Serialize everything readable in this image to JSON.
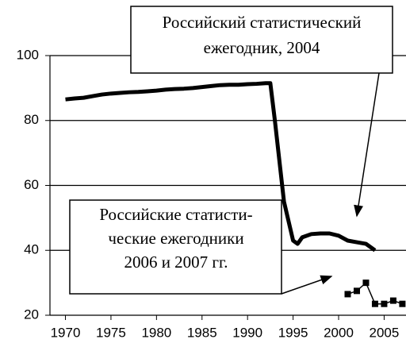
{
  "chart_data": {
    "type": "line",
    "series": [
      {
        "color": "#000000",
        "width": 5,
        "markers": false,
        "x": [
          1970,
          1971,
          1972,
          1973,
          1974,
          1975,
          1976,
          1977,
          1978,
          1979,
          1980,
          1981,
          1982,
          1983,
          1984,
          1985,
          1986,
          1987,
          1988,
          1989,
          1990,
          1991,
          1992,
          1992.5,
          1993,
          1994,
          1995,
          1995.5,
          1996,
          1997,
          1998,
          1999,
          2000,
          2001,
          2002,
          2003,
          2004
        ],
        "values": [
          86.5,
          86.8,
          87,
          87.5,
          88,
          88.3,
          88.5,
          88.7,
          88.8,
          89,
          89.2,
          89.5,
          89.7,
          89.8,
          90,
          90.3,
          90.6,
          90.9,
          91,
          91,
          91.2,
          91.3,
          91.5,
          91.5,
          80,
          55,
          43,
          42,
          44,
          45,
          45.2,
          45.2,
          44.5,
          43,
          42.5,
          42,
          40
        ]
      },
      {
        "color": "#000000",
        "width": 1.5,
        "markers": true,
        "x": [
          2001,
          2002,
          2003,
          2004,
          2005,
          2006,
          2007
        ],
        "values": [
          26.5,
          27.5,
          30,
          23.5,
          23.5,
          24.5,
          23.5
        ]
      }
    ],
    "xlim": [
      1968.3,
      2007.4
    ],
    "xticks": [
      1970,
      1975,
      1980,
      1985,
      1990,
      1995,
      2000,
      2005
    ],
    "ylim": [
      20,
      100
    ],
    "yticks": [
      20,
      40,
      60,
      80,
      100
    ],
    "grid": true,
    "annotations": [
      {
        "lines": [
          "Российский статистический",
          "ежегодник, 2004"
        ]
      },
      {
        "lines": [
          "Российские статисти-",
          "ческие ежегодники",
          "2006 и 2007 гг."
        ]
      }
    ]
  }
}
